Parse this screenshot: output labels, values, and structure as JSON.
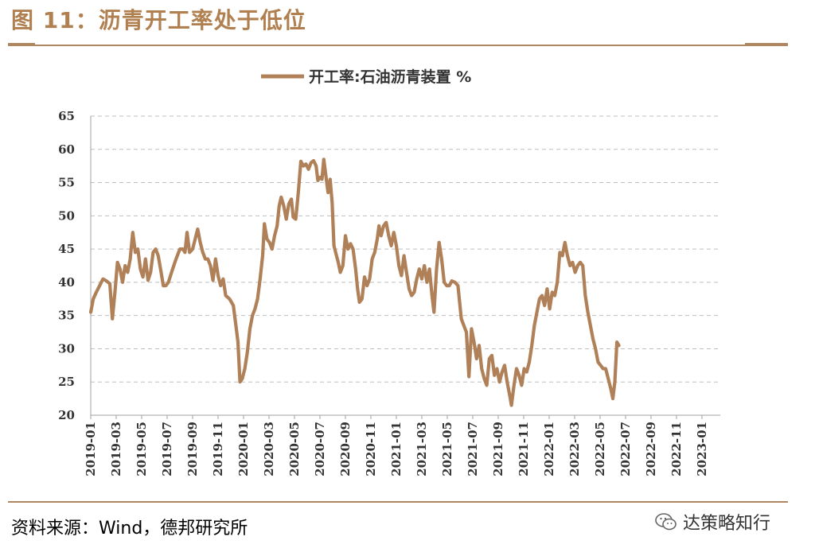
{
  "figure": {
    "title": "图 11：沥青开工率处于低位",
    "source": "资料来源：Wind，德邦研究所",
    "watermark": "达策略知行"
  },
  "colors": {
    "series": "#b08158",
    "accent": "#b08660",
    "grid": "#bfbfbf"
  },
  "chart_data": {
    "type": "line",
    "title": "",
    "xlabel": "",
    "ylabel": "",
    "ylim": [
      20,
      65
    ],
    "yticks": [
      20,
      25,
      30,
      35,
      40,
      45,
      50,
      55,
      60,
      65
    ],
    "grid": "horizontal dashed",
    "legend_position": "top-center",
    "x_tick_labels": [
      "2019-01",
      "2019-03",
      "2019-05",
      "2019-07",
      "2019-09",
      "2019-11",
      "2020-01",
      "2020-03",
      "2020-05",
      "2020-07",
      "2020-09",
      "2020-11",
      "2021-01",
      "2021-03",
      "2021-05",
      "2021-07",
      "2021-09",
      "2021-11",
      "2022-01",
      "2022-03",
      "2022-05",
      "2022-07",
      "2022-09",
      "2022-11",
      "2023-01"
    ],
    "series": [
      {
        "name": "开工率:石油沥青装置 %",
        "points": [
          [
            0.0,
            35.5
          ],
          [
            0.1,
            37.5
          ],
          [
            0.22,
            38.5
          ],
          [
            0.35,
            39.5
          ],
          [
            0.48,
            40.5
          ],
          [
            0.62,
            40.2
          ],
          [
            0.75,
            39.8
          ],
          [
            0.85,
            34.5
          ],
          [
            0.95,
            38.5
          ],
          [
            1.05,
            43.0
          ],
          [
            1.15,
            42.0
          ],
          [
            1.25,
            40.0
          ],
          [
            1.35,
            42.5
          ],
          [
            1.45,
            41.5
          ],
          [
            1.55,
            43.5
          ],
          [
            1.65,
            47.5
          ],
          [
            1.75,
            44.5
          ],
          [
            1.85,
            45.0
          ],
          [
            1.95,
            42.0
          ],
          [
            2.05,
            40.8
          ],
          [
            2.15,
            43.5
          ],
          [
            2.25,
            40.3
          ],
          [
            2.35,
            41.5
          ],
          [
            2.45,
            44.5
          ],
          [
            2.55,
            45.0
          ],
          [
            2.65,
            44.0
          ],
          [
            2.75,
            41.8
          ],
          [
            2.85,
            39.5
          ],
          [
            2.95,
            39.5
          ],
          [
            3.05,
            40.0
          ],
          [
            3.2,
            41.8
          ],
          [
            3.35,
            43.5
          ],
          [
            3.5,
            45.0
          ],
          [
            3.62,
            45.0
          ],
          [
            3.7,
            44.5
          ],
          [
            3.78,
            47.5
          ],
          [
            3.88,
            44.5
          ],
          [
            4.0,
            45.0
          ],
          [
            4.1,
            46.5
          ],
          [
            4.2,
            48.0
          ],
          [
            4.3,
            46.0
          ],
          [
            4.4,
            44.5
          ],
          [
            4.5,
            43.5
          ],
          [
            4.6,
            43.5
          ],
          [
            4.7,
            42.5
          ],
          [
            4.8,
            40.3
          ],
          [
            4.9,
            43.5
          ],
          [
            5.0,
            41.0
          ],
          [
            5.1,
            39.5
          ],
          [
            5.2,
            40.5
          ],
          [
            5.3,
            38.0
          ],
          [
            5.45,
            37.5
          ],
          [
            5.6,
            36.5
          ],
          [
            5.7,
            33.5
          ],
          [
            5.78,
            31.0
          ],
          [
            5.86,
            25.0
          ],
          [
            5.95,
            25.5
          ],
          [
            6.05,
            27.0
          ],
          [
            6.15,
            29.5
          ],
          [
            6.25,
            33.0
          ],
          [
            6.35,
            35.0
          ],
          [
            6.45,
            36.0
          ],
          [
            6.55,
            37.5
          ],
          [
            6.65,
            40.5
          ],
          [
            6.75,
            44.0
          ],
          [
            6.82,
            48.8
          ],
          [
            6.92,
            46.5
          ],
          [
            7.02,
            46.0
          ],
          [
            7.12,
            45.0
          ],
          [
            7.22,
            47.0
          ],
          [
            7.32,
            48.5
          ],
          [
            7.4,
            51.5
          ],
          [
            7.48,
            52.8
          ],
          [
            7.58,
            51.5
          ],
          [
            7.68,
            49.5
          ],
          [
            7.78,
            51.8
          ],
          [
            7.88,
            52.5
          ],
          [
            7.95,
            49.8
          ],
          [
            8.05,
            49.5
          ],
          [
            8.15,
            53.5
          ],
          [
            8.25,
            58.2
          ],
          [
            8.35,
            57.5
          ],
          [
            8.45,
            57.8
          ],
          [
            8.55,
            57.0
          ],
          [
            8.65,
            58.0
          ],
          [
            8.75,
            58.3
          ],
          [
            8.85,
            57.5
          ],
          [
            8.92,
            55.3
          ],
          [
            9.0,
            55.8
          ],
          [
            9.08,
            55.5
          ],
          [
            9.15,
            58.5
          ],
          [
            9.25,
            55.5
          ],
          [
            9.32,
            53.5
          ],
          [
            9.4,
            55.5
          ],
          [
            9.48,
            52.0
          ],
          [
            9.55,
            45.5
          ],
          [
            9.65,
            44.0
          ],
          [
            9.72,
            43.0
          ],
          [
            9.8,
            41.5
          ],
          [
            9.9,
            42.5
          ],
          [
            10.0,
            47.0
          ],
          [
            10.1,
            45.0
          ],
          [
            10.2,
            45.8
          ],
          [
            10.3,
            45.0
          ],
          [
            10.4,
            42.0
          ],
          [
            10.48,
            39.0
          ],
          [
            10.55,
            37.0
          ],
          [
            10.65,
            37.5
          ],
          [
            10.75,
            40.8
          ],
          [
            10.85,
            39.5
          ],
          [
            10.95,
            40.5
          ],
          [
            11.05,
            43.5
          ],
          [
            11.15,
            44.5
          ],
          [
            11.25,
            46.5
          ],
          [
            11.32,
            48.5
          ],
          [
            11.4,
            47.0
          ],
          [
            11.5,
            48.5
          ],
          [
            11.6,
            49.0
          ],
          [
            11.7,
            47.0
          ],
          [
            11.8,
            45.5
          ],
          [
            11.9,
            47.5
          ],
          [
            12.0,
            45.5
          ],
          [
            12.1,
            42.5
          ],
          [
            12.2,
            41.0
          ],
          [
            12.3,
            44.0
          ],
          [
            12.4,
            41.5
          ],
          [
            12.5,
            39.0
          ],
          [
            12.6,
            38.0
          ],
          [
            12.7,
            38.5
          ],
          [
            12.8,
            40.5
          ],
          [
            12.9,
            42.0
          ],
          [
            13.0,
            40.5
          ],
          [
            13.1,
            42.5
          ],
          [
            13.2,
            40.0
          ],
          [
            13.3,
            42.0
          ],
          [
            13.4,
            38.0
          ],
          [
            13.48,
            35.5
          ],
          [
            13.58,
            42.0
          ],
          [
            13.68,
            46.0
          ],
          [
            13.78,
            43.5
          ],
          [
            13.88,
            40.0
          ],
          [
            13.98,
            39.5
          ],
          [
            14.08,
            39.5
          ],
          [
            14.18,
            40.2
          ],
          [
            14.3,
            40.0
          ],
          [
            14.42,
            39.5
          ],
          [
            14.55,
            34.5
          ],
          [
            14.65,
            33.5
          ],
          [
            14.75,
            32.5
          ],
          [
            14.85,
            25.8
          ],
          [
            14.95,
            33.0
          ],
          [
            15.05,
            31.0
          ],
          [
            15.15,
            28.5
          ],
          [
            15.25,
            30.5
          ],
          [
            15.35,
            27.0
          ],
          [
            15.45,
            25.5
          ],
          [
            15.55,
            24.5
          ],
          [
            15.65,
            28.5
          ],
          [
            15.75,
            29.0
          ],
          [
            15.85,
            26.0
          ],
          [
            15.95,
            27.0
          ],
          [
            16.05,
            25.0
          ],
          [
            16.15,
            26.5
          ],
          [
            16.25,
            27.5
          ],
          [
            16.35,
            25.0
          ],
          [
            16.45,
            23.0
          ],
          [
            16.52,
            21.5
          ],
          [
            16.62,
            24.5
          ],
          [
            16.72,
            27.0
          ],
          [
            16.82,
            26.0
          ],
          [
            16.92,
            24.5
          ],
          [
            17.02,
            27.0
          ],
          [
            17.12,
            26.5
          ],
          [
            17.22,
            28.0
          ],
          [
            17.32,
            30.5
          ],
          [
            17.42,
            33.5
          ],
          [
            17.52,
            35.5
          ],
          [
            17.62,
            37.5
          ],
          [
            17.72,
            38.0
          ],
          [
            17.82,
            36.5
          ],
          [
            17.92,
            39.0
          ],
          [
            18.02,
            36.0
          ],
          [
            18.12,
            38.5
          ],
          [
            18.22,
            38.0
          ],
          [
            18.32,
            40.0
          ],
          [
            18.42,
            44.5
          ],
          [
            18.52,
            44.0
          ],
          [
            18.62,
            46.0
          ],
          [
            18.72,
            44.0
          ],
          [
            18.82,
            42.5
          ],
          [
            18.92,
            43.0
          ],
          [
            19.02,
            41.5
          ],
          [
            19.12,
            42.5
          ],
          [
            19.22,
            43.0
          ],
          [
            19.32,
            42.5
          ],
          [
            19.42,
            38.0
          ],
          [
            19.52,
            35.5
          ],
          [
            19.62,
            33.5
          ],
          [
            19.72,
            31.5
          ],
          [
            19.82,
            30.0
          ],
          [
            19.92,
            28.0
          ],
          [
            20.02,
            27.5
          ],
          [
            20.12,
            27.0
          ],
          [
            20.22,
            27.0
          ],
          [
            20.32,
            25.5
          ],
          [
            20.42,
            24.0
          ],
          [
            20.5,
            22.5
          ],
          [
            20.58,
            25.0
          ],
          [
            20.66,
            31.0
          ],
          [
            20.74,
            30.5
          ]
        ]
      }
    ]
  }
}
